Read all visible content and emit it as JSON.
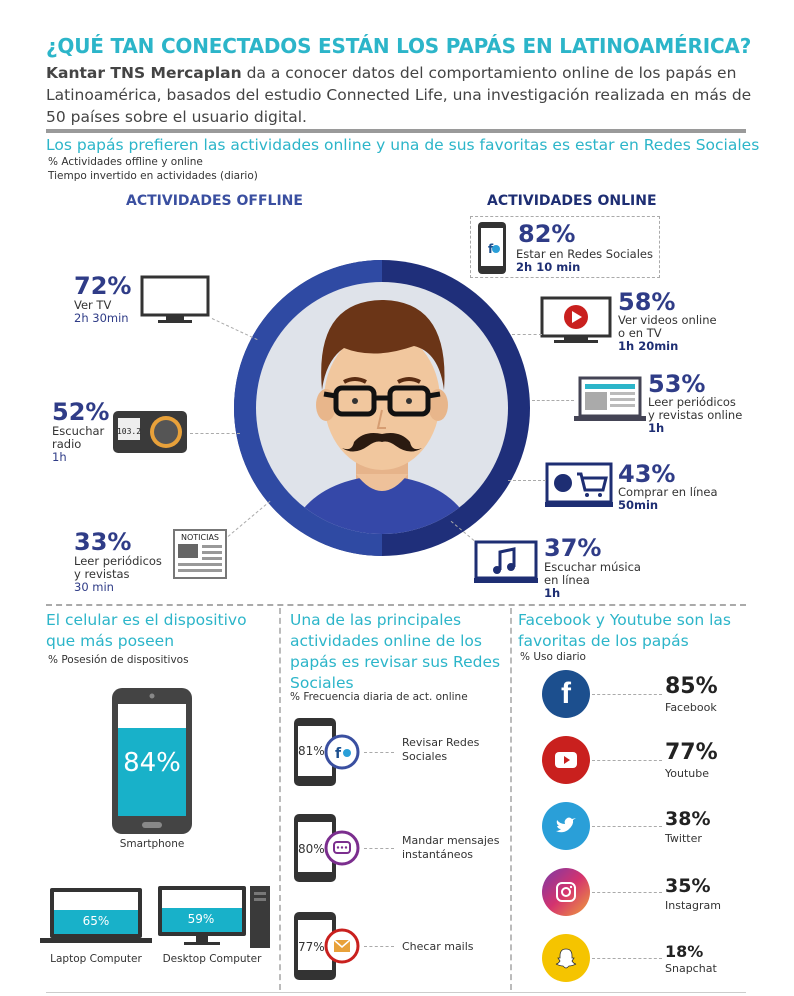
{
  "header": {
    "title": "¿QUÉ TAN CONECTADOS ESTÁN LOS PAPÁS EN LATINOAMÉRICA?",
    "intro_bold": "Kantar TNS Mercaplan",
    "intro_rest": " da a conocer datos del comportamiento online de los papás en Latinoamérica, basados del estudio Connected Life, una investigación realizada en más de 50 países sobre el usuario digital."
  },
  "section1": {
    "heading": "Los papás prefieren las actividades online y una de sus favoritas es estar en Redes Sociales",
    "note1": "% Actividades offline y online",
    "note2": "Tiempo invertido en actividades (diario)",
    "offline_header": "ACTIVIDADES OFFLINE",
    "online_header": "ACTIVIDADES ONLINE",
    "offline": [
      {
        "pct": "72%",
        "label": "Ver TV",
        "time": "2h 30min",
        "icon": "tv-icon"
      },
      {
        "pct": "52%",
        "label1": "Escuchar",
        "label2": "radio",
        "time": "1h",
        "icon": "radio-icon"
      },
      {
        "pct": "33%",
        "label1": "Leer periódicos",
        "label2": "y revistas",
        "time": "30 min",
        "icon": "newspaper-icon",
        "icon_text": "NOTICIAS"
      }
    ],
    "online": [
      {
        "pct": "82%",
        "label": "Estar en Redes Sociales",
        "time": "2h 10 min",
        "icon": "phone-social-icon"
      },
      {
        "pct": "58%",
        "label1": "Ver videos online",
        "label2": "o en TV",
        "time": "1h 20min",
        "icon": "video-icon"
      },
      {
        "pct": "53%",
        "label1": "Leer periódicos",
        "label2": "y revistas online",
        "time": "1h",
        "icon": "laptop-news-icon"
      },
      {
        "pct": "43%",
        "label": "Comprar en línea",
        "time": "50min",
        "icon": "cart-icon"
      },
      {
        "pct": "37%",
        "label1": "Escuchar música",
        "label2": "en línea",
        "time": "1h",
        "icon": "music-icon"
      }
    ],
    "radio_display": "103.2"
  },
  "devices": {
    "heading": "El celular es el dispositivo que más poseen",
    "note": "% Posesión de dispositivos",
    "smartphone_pct": "84%",
    "smartphone_label": "Smartphone",
    "laptop_pct": "65%",
    "laptop_label": "Laptop Computer",
    "desktop_pct": "59%",
    "desktop_label": "Desktop Computer"
  },
  "activities": {
    "heading": "Una de las principales actividades online de los papás es revisar sus Redes Sociales",
    "note": "% Frecuencia diaria de act. online",
    "items": [
      {
        "pct": "81%",
        "label1": "Revisar Redes",
        "label2": "Sociales",
        "icon": "social-icon"
      },
      {
        "pct": "80%",
        "label1": "Mandar mensajes",
        "label2": "instantáneos",
        "icon": "chat-icon"
      },
      {
        "pct": "77%",
        "label1": "Checar mails",
        "label2": "",
        "icon": "mail-icon"
      }
    ]
  },
  "social": {
    "heading": "Facebook y Youtube son las favoritas de los papás",
    "note": "% Uso diario",
    "items": [
      {
        "pct": "85%",
        "name": "Facebook",
        "color": "#1c4f8e",
        "icon": "facebook-icon"
      },
      {
        "pct": "77%",
        "name": "Youtube",
        "color": "#c9201e",
        "icon": "youtube-icon"
      },
      {
        "pct": "38%",
        "name": "Twitter",
        "color": "#2a9fd8",
        "icon": "twitter-icon"
      },
      {
        "pct": "35%",
        "name": "Instagram",
        "color": "#c5337f",
        "icon": "instagram-icon"
      },
      {
        "pct": "18%",
        "name": "Snapchat",
        "color": "#f5c400",
        "icon": "snapchat-icon"
      }
    ]
  }
}
